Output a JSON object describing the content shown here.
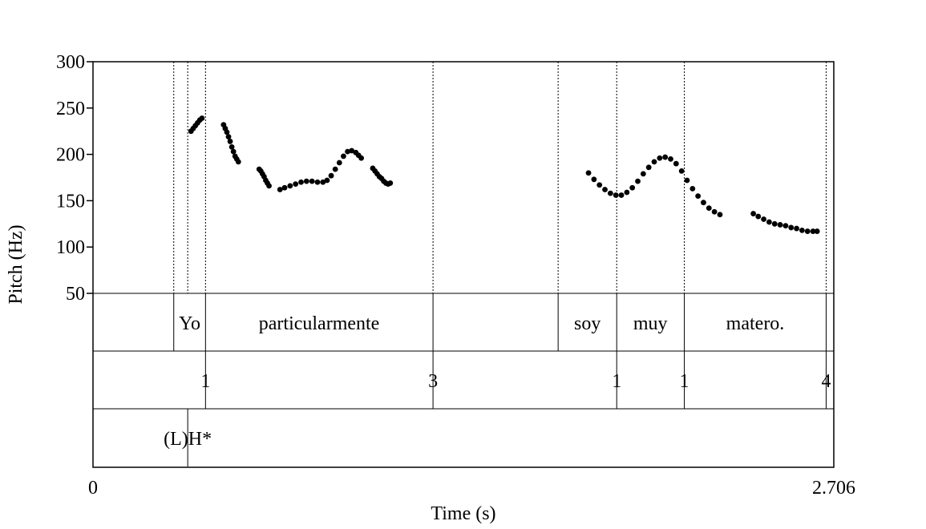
{
  "chart_data": {
    "type": "scatter",
    "title": "",
    "xlabel": "Time (s)",
    "ylabel": "Pitch (Hz)",
    "xlim": [
      0,
      2.706
    ],
    "ylim": [
      50,
      300
    ],
    "x_tick_labels": [
      "0",
      "2.706"
    ],
    "y_ticks": [
      {
        "value": 300,
        "label": "300"
      },
      {
        "value": 250,
        "label": "250"
      },
      {
        "value": 200,
        "label": "200"
      },
      {
        "value": 150,
        "label": "150"
      },
      {
        "value": 100,
        "label": "100"
      },
      {
        "value": 50,
        "label": "50"
      }
    ],
    "pitch_segments": [
      [
        [
          0.358,
          225
        ],
        [
          0.366,
          228
        ],
        [
          0.374,
          231
        ],
        [
          0.382,
          234
        ],
        [
          0.39,
          237
        ],
        [
          0.398,
          239
        ]
      ],
      [
        [
          0.477,
          232
        ],
        [
          0.483,
          228
        ],
        [
          0.489,
          224
        ],
        [
          0.495,
          219
        ],
        [
          0.501,
          214
        ],
        [
          0.507,
          208
        ],
        [
          0.513,
          203
        ],
        [
          0.519,
          198
        ],
        [
          0.525,
          195
        ],
        [
          0.531,
          192
        ]
      ],
      [
        [
          0.607,
          184
        ],
        [
          0.613,
          182
        ],
        [
          0.619,
          179
        ],
        [
          0.625,
          176
        ],
        [
          0.631,
          172
        ],
        [
          0.637,
          169
        ],
        [
          0.643,
          166
        ]
      ],
      [
        [
          0.683,
          162
        ],
        [
          0.7,
          164
        ],
        [
          0.72,
          166
        ],
        [
          0.74,
          168
        ],
        [
          0.76,
          170
        ],
        [
          0.78,
          171
        ],
        [
          0.8,
          171
        ],
        [
          0.82,
          170
        ],
        [
          0.84,
          170
        ],
        [
          0.855,
          172
        ],
        [
          0.87,
          177
        ],
        [
          0.885,
          184
        ],
        [
          0.9,
          191
        ],
        [
          0.915,
          198
        ],
        [
          0.93,
          203
        ],
        [
          0.945,
          204
        ],
        [
          0.96,
          202
        ],
        [
          0.97,
          199
        ],
        [
          0.98,
          196
        ]
      ],
      [
        [
          1.022,
          185
        ],
        [
          1.03,
          182
        ],
        [
          1.038,
          179
        ],
        [
          1.046,
          176
        ],
        [
          1.054,
          174
        ],
        [
          1.062,
          171
        ],
        [
          1.07,
          169
        ],
        [
          1.078,
          168
        ],
        [
          1.086,
          169
        ]
      ],
      [
        [
          1.81,
          180
        ],
        [
          1.83,
          173
        ],
        [
          1.85,
          167
        ],
        [
          1.87,
          162
        ],
        [
          1.89,
          158
        ],
        [
          1.91,
          156
        ],
        [
          1.93,
          156
        ],
        [
          1.95,
          159
        ],
        [
          1.97,
          164
        ],
        [
          1.99,
          171
        ],
        [
          2.01,
          179
        ],
        [
          2.03,
          186
        ],
        [
          2.05,
          192
        ],
        [
          2.07,
          196
        ],
        [
          2.09,
          197
        ],
        [
          2.11,
          195
        ],
        [
          2.13,
          190
        ],
        [
          2.15,
          182
        ],
        [
          2.17,
          172
        ],
        [
          2.19,
          163
        ],
        [
          2.21,
          155
        ],
        [
          2.23,
          148
        ],
        [
          2.25,
          142
        ],
        [
          2.27,
          138
        ],
        [
          2.29,
          135
        ]
      ],
      [
        [
          2.412,
          136
        ],
        [
          2.43,
          133
        ],
        [
          2.45,
          130
        ],
        [
          2.47,
          127
        ],
        [
          2.49,
          125
        ],
        [
          2.51,
          124
        ],
        [
          2.53,
          123
        ],
        [
          2.55,
          121
        ],
        [
          2.57,
          120
        ],
        [
          2.59,
          118
        ],
        [
          2.61,
          117
        ],
        [
          2.63,
          117
        ],
        [
          2.645,
          117
        ]
      ]
    ],
    "boundaries": [
      0.295,
      0.346,
      0.411,
      1.242,
      1.699,
      1.913,
      2.16,
      2.678
    ],
    "tiers": [
      {
        "labels": [
          {
            "text": "Yo",
            "x": 0.353
          },
          {
            "text": "particularmente",
            "x": 0.826
          },
          {
            "text": "soy",
            "x": 1.806
          },
          {
            "text": "muy",
            "x": 2.036
          },
          {
            "text": "matero.",
            "x": 2.419
          }
        ],
        "lines": [
          0.295,
          0.411,
          1.242,
          1.699,
          1.913,
          2.16,
          2.678
        ]
      },
      {
        "labels": [
          {
            "text": "1",
            "x": 0.411
          },
          {
            "text": "3",
            "x": 1.242
          },
          {
            "text": "1",
            "x": 1.913
          },
          {
            "text": "1",
            "x": 2.16
          },
          {
            "text": "4",
            "x": 2.678
          }
        ],
        "lines": [
          0.411,
          1.242,
          1.913,
          2.16,
          2.678
        ]
      },
      {
        "labels": [
          {
            "text": "(L)H*",
            "x": 0.346
          }
        ],
        "lines": [
          0.346
        ]
      }
    ]
  }
}
